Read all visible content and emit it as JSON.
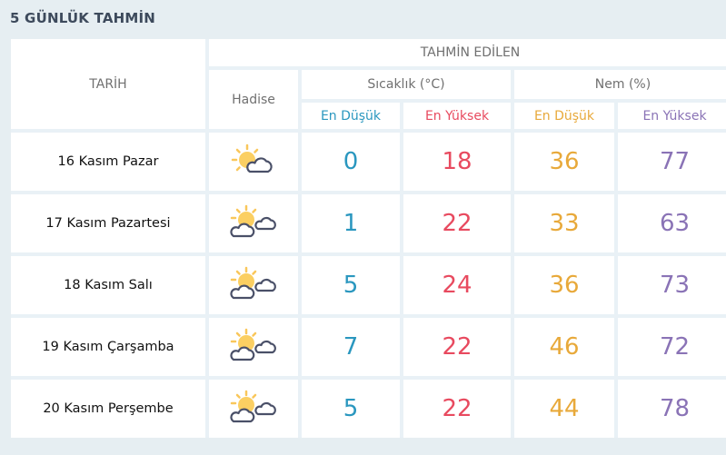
{
  "title": "5 GÜNLÜK TAHMİN",
  "header": {
    "date": "TARİH",
    "event": "Hadise",
    "forecast": "TAHMİN EDİLEN",
    "temperature": "Sıcaklık (°C)",
    "humidity": "Nem (%)",
    "temp_low": "En Düşük",
    "temp_high": "En Yüksek",
    "hum_low": "En Düşük",
    "hum_high": "En Yüksek"
  },
  "colors": {
    "temp_low": "#2a97bf",
    "temp_high": "#e84a5f",
    "hum_low": "#e8a93a",
    "hum_high": "#8a73b6"
  },
  "rows": [
    {
      "date": "16 Kasım Pazar",
      "icon": "partly-cloudy-icon",
      "temp_low": "0",
      "temp_high": "18",
      "hum_low": "36",
      "hum_high": "77"
    },
    {
      "date": "17 Kasım Pazartesi",
      "icon": "sun-two-clouds-icon",
      "temp_low": "1",
      "temp_high": "22",
      "hum_low": "33",
      "hum_high": "63"
    },
    {
      "date": "18 Kasım Salı",
      "icon": "sun-two-clouds-icon",
      "temp_low": "5",
      "temp_high": "24",
      "hum_low": "36",
      "hum_high": "73"
    },
    {
      "date": "19 Kasım Çarşamba",
      "icon": "sun-two-clouds-icon",
      "temp_low": "7",
      "temp_high": "22",
      "hum_low": "46",
      "hum_high": "72"
    },
    {
      "date": "20 Kasım Perşembe",
      "icon": "sun-two-clouds-icon",
      "temp_low": "5",
      "temp_high": "22",
      "hum_low": "44",
      "hum_high": "78"
    }
  ]
}
